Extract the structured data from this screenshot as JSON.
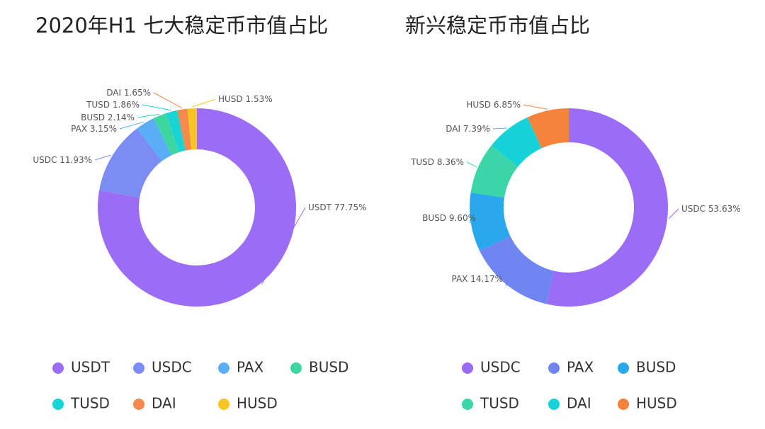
{
  "chart_data": [
    {
      "type": "pie",
      "title": "2020年H1 七大稳定币市值占比",
      "categories": [
        "USDT",
        "USDC",
        "PAX",
        "BUSD",
        "TUSD",
        "DAI",
        "HUSD"
      ],
      "values": [
        77.75,
        11.93,
        3.15,
        2.14,
        1.86,
        1.65,
        1.53
      ],
      "value_labels": [
        "77.75%",
        "11.93%",
        "3.15%",
        "2.14%",
        "1.86%",
        "1.65%",
        "1.53%"
      ],
      "colors": [
        "#9b6cf6",
        "#7b8cf5",
        "#5aaef5",
        "#3dd6a0",
        "#18d4d4",
        "#f58a4c",
        "#f7c520"
      ]
    },
    {
      "type": "pie",
      "title": "新兴稳定币市值占比",
      "categories": [
        "USDC",
        "PAX",
        "BUSD",
        "TUSD",
        "DAI",
        "HUSD"
      ],
      "values": [
        53.63,
        14.17,
        9.6,
        8.36,
        7.39,
        6.85
      ],
      "value_labels": [
        "53.63%",
        "14.17%",
        "9.60%",
        "8.36%",
        "7.39%",
        "6.85%"
      ],
      "colors": [
        "#9b6cf6",
        "#6f85f2",
        "#2aa8ee",
        "#3ad6a8",
        "#14d2d8",
        "#f5833c"
      ]
    }
  ]
}
